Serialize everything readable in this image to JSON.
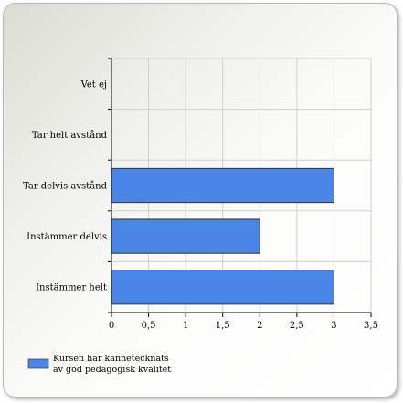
{
  "chart_data": {
    "type": "bar",
    "orientation": "horizontal",
    "categories": [
      "Vet ej",
      "Tar helt avstånd",
      "Tar delvis avstånd",
      "Instämmer delvis",
      "Instämmer helt"
    ],
    "series": [
      {
        "name": "Kursen har kännetecknats av god pedagogisk kvalitet",
        "name_lines": [
          "Kursen har kännetecknats",
          "av god pedagogisk kvalitet"
        ],
        "values": [
          0,
          0,
          3,
          2,
          3
        ],
        "color": "#4a86e8"
      }
    ],
    "x_ticks": [
      "0",
      "0,5",
      "1",
      "1,5",
      "2",
      "2,5",
      "3",
      "3,5"
    ],
    "xlim": [
      0,
      3.5
    ],
    "grid": true,
    "legend": "bottom-left",
    "title": "",
    "xlabel": "",
    "ylabel": ""
  }
}
